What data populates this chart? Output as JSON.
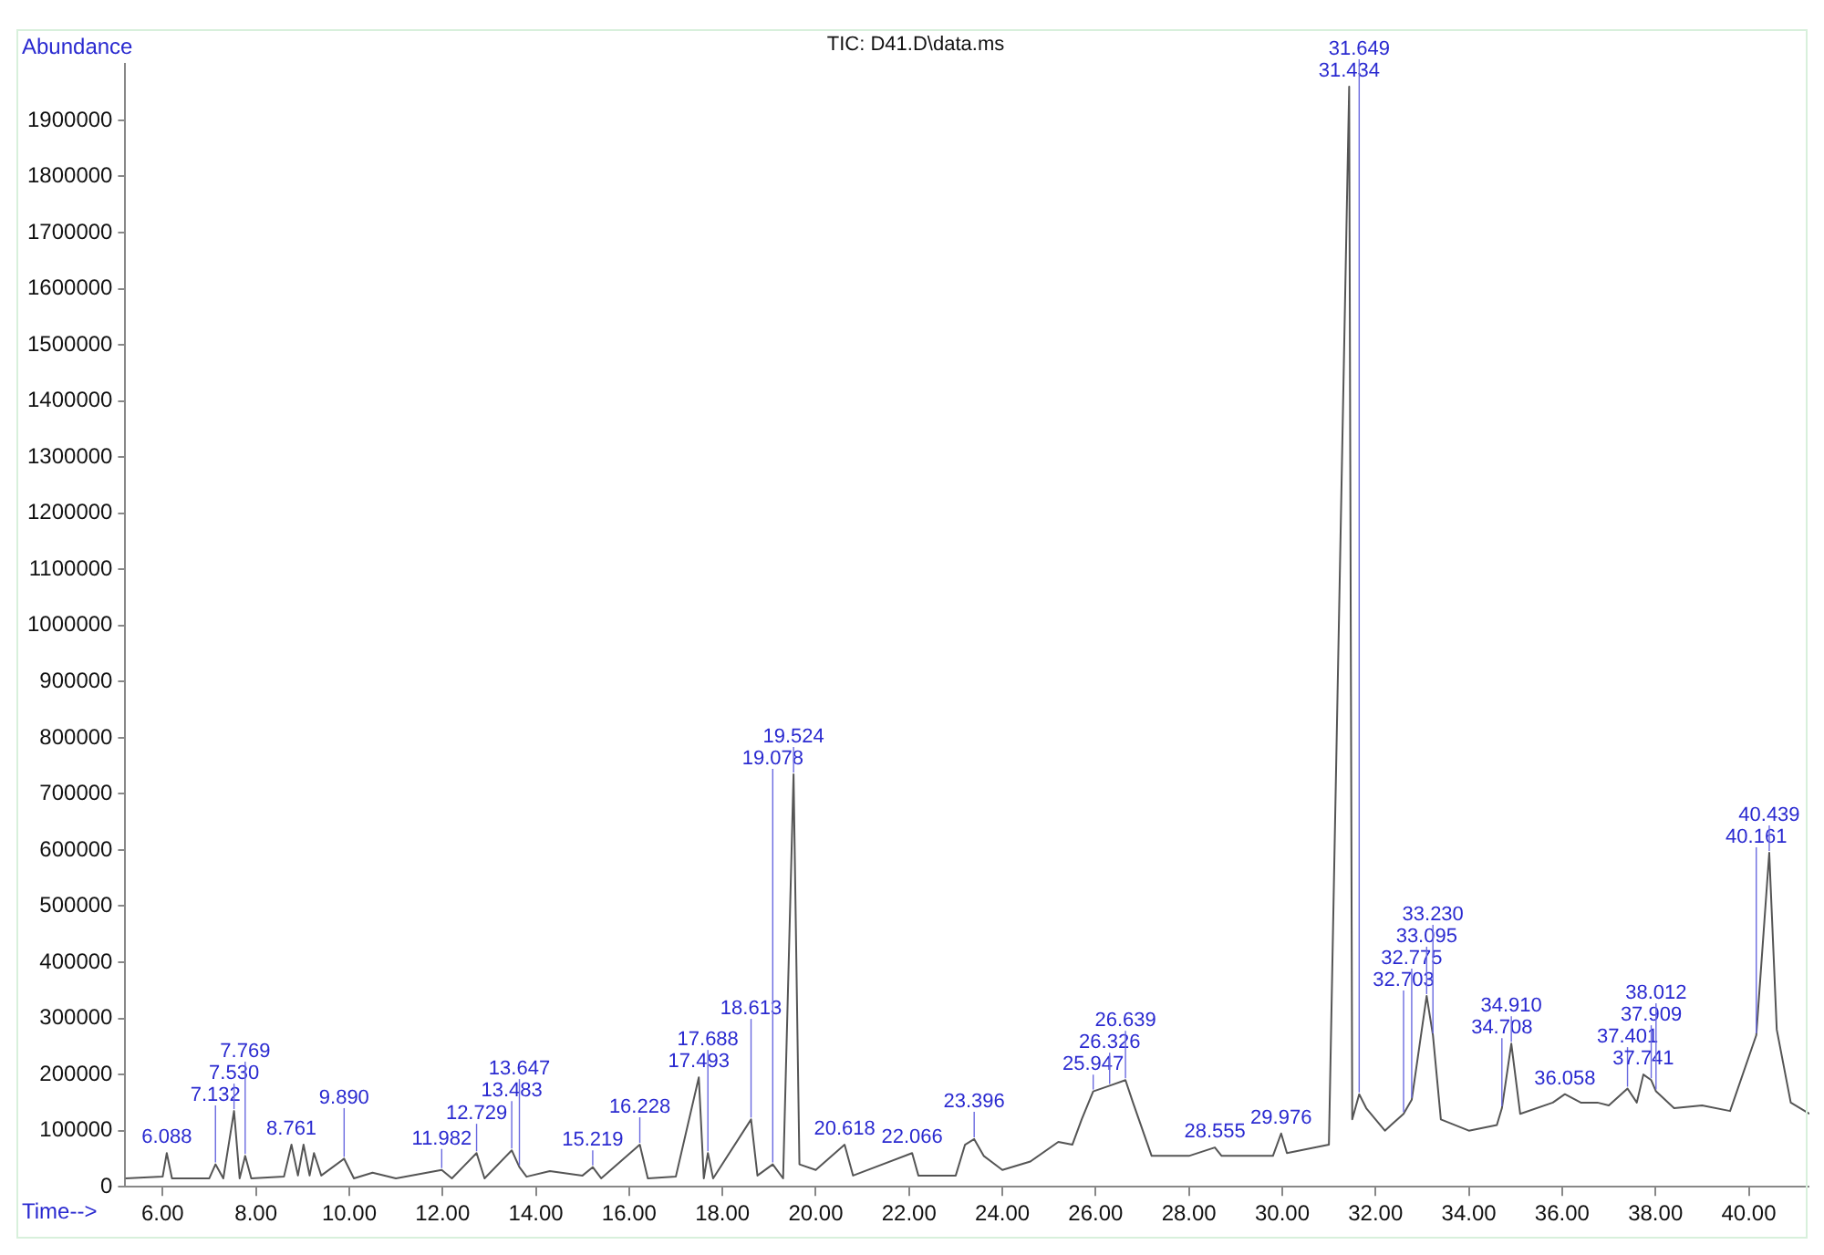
{
  "chart_data": {
    "type": "line",
    "title": "TIC: D41.D\\data.ms",
    "xlabel": "Time-->",
    "ylabel": "Abundance",
    "xlim": [
      5.2,
      41.3
    ],
    "ylim": [
      0,
      2000000
    ],
    "xticks": [
      {
        "value": 6,
        "label": "6.00"
      },
      {
        "value": 8,
        "label": "8.00"
      },
      {
        "value": 10,
        "label": "10.00"
      },
      {
        "value": 12,
        "label": "12.00"
      },
      {
        "value": 14,
        "label": "14.00"
      },
      {
        "value": 16,
        "label": "16.00"
      },
      {
        "value": 18,
        "label": "18.00"
      },
      {
        "value": 20,
        "label": "20.00"
      },
      {
        "value": 22,
        "label": "22.00"
      },
      {
        "value": 24,
        "label": "24.00"
      },
      {
        "value": 26,
        "label": "26.00"
      },
      {
        "value": 28,
        "label": "28.00"
      },
      {
        "value": 30,
        "label": "30.00"
      },
      {
        "value": 32,
        "label": "32.00"
      },
      {
        "value": 34,
        "label": "34.00"
      },
      {
        "value": 36,
        "label": "36.00"
      },
      {
        "value": 38,
        "label": "38.00"
      },
      {
        "value": 40,
        "label": "40.00"
      }
    ],
    "yticks": [
      0,
      100000,
      200000,
      300000,
      400000,
      500000,
      600000,
      700000,
      800000,
      900000,
      1000000,
      1100000,
      1200000,
      1300000,
      1400000,
      1500000,
      1600000,
      1700000,
      1800000,
      1900000
    ],
    "grid": false,
    "legend": false,
    "marker": "none",
    "line_style": "solid",
    "series": [
      {
        "color": "#555555",
        "x": [
          5.2,
          6.0,
          6.088,
          6.2,
          7.0,
          7.132,
          7.3,
          7.53,
          7.65,
          7.769,
          7.9,
          8.6,
          8.761,
          8.9,
          9.02,
          9.15,
          9.244,
          9.4,
          9.89,
          10.1,
          10.5,
          11.0,
          11.982,
          12.2,
          12.729,
          12.9,
          13.483,
          13.647,
          13.8,
          14.3,
          15.0,
          15.219,
          15.4,
          16.228,
          16.4,
          17.0,
          17.493,
          17.6,
          17.688,
          17.8,
          18.613,
          18.75,
          19.078,
          19.3,
          19.524,
          19.65,
          20.0,
          20.618,
          20.8,
          22.066,
          22.2,
          23.0,
          23.2,
          23.396,
          23.6,
          24.0,
          24.6,
          25.2,
          25.5,
          25.7,
          25.947,
          26.3,
          26.639,
          26.8,
          27.2,
          28.0,
          28.555,
          28.7,
          29.8,
          29.976,
          30.1,
          31.0,
          31.434,
          31.5,
          31.649,
          31.8,
          32.2,
          32.6,
          32.775,
          33.095,
          33.23,
          33.4,
          34.0,
          34.6,
          34.708,
          34.91,
          35.1,
          35.8,
          36.058,
          36.4,
          36.757,
          37.0,
          37.401,
          37.6,
          37.741,
          37.909,
          38.012,
          38.4,
          39.0,
          39.6,
          40.161,
          40.439,
          40.6,
          40.9,
          41.3
        ],
        "values": [
          15000,
          18000,
          60000,
          15000,
          15000,
          40000,
          15000,
          135000,
          15000,
          55000,
          15000,
          18000,
          75000,
          20000,
          75000,
          20000,
          60000,
          20000,
          50000,
          15000,
          25000,
          15000,
          30000,
          15000,
          60000,
          15000,
          65000,
          35000,
          18000,
          28000,
          20000,
          35000,
          15000,
          75000,
          15000,
          18000,
          195000,
          15000,
          60000,
          15000,
          120000,
          20000,
          40000,
          15000,
          735000,
          40000,
          30000,
          75000,
          20000,
          60000,
          20000,
          20000,
          75000,
          85000,
          55000,
          30000,
          45000,
          80000,
          75000,
          120000,
          170000,
          180000,
          190000,
          150000,
          55000,
          55000,
          70000,
          55000,
          55000,
          95000,
          60000,
          75000,
          1960000,
          120000,
          165000,
          140000,
          100000,
          130000,
          155000,
          340000,
          270000,
          120000,
          100000,
          110000,
          140000,
          255000,
          130000,
          150000,
          165000,
          150000,
          150000,
          145000,
          175000,
          150000,
          200000,
          190000,
          170000,
          140000,
          145000,
          135000,
          270000,
          595000,
          280000,
          150000,
          130000
        ]
      }
    ],
    "annotations": [
      {
        "text": "6.088",
        "x": 6.088,
        "y": 60000
      },
      {
        "text": "7.132",
        "x": 7.132,
        "y": 40000
      },
      {
        "text": "7.530",
        "x": 7.53,
        "y": 135000
      },
      {
        "text": "7.769",
        "x": 7.769,
        "y": 55000
      },
      {
        "text": "8.761",
        "x": 8.761,
        "y": 75000
      },
      {
        "text": "9.890",
        "x": 9.89,
        "y": 50000
      },
      {
        "text": "11.982",
        "x": 11.982,
        "y": 30000
      },
      {
        "text": "12.729",
        "x": 12.729,
        "y": 60000
      },
      {
        "text": "13.483",
        "x": 13.483,
        "y": 65000
      },
      {
        "text": "13.647",
        "x": 13.647,
        "y": 35000
      },
      {
        "text": "15.219",
        "x": 15.219,
        "y": 35000
      },
      {
        "text": "16.228",
        "x": 16.228,
        "y": 75000
      },
      {
        "text": "17.493",
        "x": 17.493,
        "y": 195000
      },
      {
        "text": "17.688",
        "x": 17.688,
        "y": 60000
      },
      {
        "text": "18.613",
        "x": 18.613,
        "y": 120000
      },
      {
        "text": "19.078",
        "x": 19.078,
        "y": 40000
      },
      {
        "text": "19.524",
        "x": 19.524,
        "y": 735000
      },
      {
        "text": "20.618",
        "x": 20.618,
        "y": 75000
      },
      {
        "text": "22.066",
        "x": 22.066,
        "y": 60000
      },
      {
        "text": "23.396",
        "x": 23.396,
        "y": 85000
      },
      {
        "text": "25.947",
        "x": 25.947,
        "y": 170000
      },
      {
        "text": "26.326",
        "x": 26.3,
        "y": 180000
      },
      {
        "text": "26.639",
        "x": 26.639,
        "y": 190000
      },
      {
        "text": "28.555",
        "x": 28.555,
        "y": 70000
      },
      {
        "text": "29.976",
        "x": 29.976,
        "y": 95000
      },
      {
        "text": "31.434",
        "x": 31.434,
        "y": 1960000
      },
      {
        "text": "31.649",
        "x": 31.649,
        "y": 165000
      },
      {
        "text": "32.703",
        "x": 32.6,
        "y": 130000
      },
      {
        "text": "32.775",
        "x": 32.775,
        "y": 155000
      },
      {
        "text": "33.095",
        "x": 33.095,
        "y": 340000
      },
      {
        "text": "33.230",
        "x": 33.23,
        "y": 270000
      },
      {
        "text": "34.708",
        "x": 34.708,
        "y": 140000
      },
      {
        "text": "34.910",
        "x": 34.91,
        "y": 255000
      },
      {
        "text": "36.058",
        "x": 36.058,
        "y": 165000
      },
      {
        "text": "37.401",
        "x": 37.401,
        "y": 175000
      },
      {
        "text": "37.741",
        "x": 37.741,
        "y": 200000
      },
      {
        "text": "37.909",
        "x": 37.909,
        "y": 190000
      },
      {
        "text": "38.012",
        "x": 38.012,
        "y": 170000
      },
      {
        "text": "40.161",
        "x": 40.161,
        "y": 270000
      },
      {
        "text": "40.439",
        "x": 40.439,
        "y": 595000
      }
    ]
  }
}
